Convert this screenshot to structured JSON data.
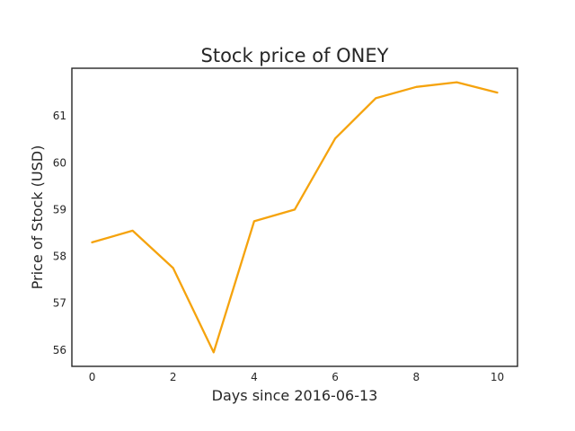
{
  "chart_data": {
    "type": "line",
    "title": "Stock price of ONEY",
    "xlabel": "Days since 2016-06-13",
    "ylabel": "Price of Stock (USD)",
    "x": [
      0,
      1,
      2,
      3,
      4,
      5,
      6,
      7,
      8,
      9,
      10
    ],
    "series": [
      {
        "values": [
          58.3,
          58.55,
          57.75,
          55.95,
          58.75,
          59.0,
          60.52,
          61.38,
          61.62,
          61.72,
          61.5
        ]
      }
    ],
    "xlim": [
      -0.5,
      10.5
    ],
    "ylim": [
      55.65,
      62.02
    ],
    "xticks": [
      0,
      2,
      4,
      6,
      8,
      10
    ],
    "yticks": [
      56,
      57,
      58,
      59,
      60,
      61
    ],
    "grid": false,
    "line_color": "#f5a30d"
  }
}
